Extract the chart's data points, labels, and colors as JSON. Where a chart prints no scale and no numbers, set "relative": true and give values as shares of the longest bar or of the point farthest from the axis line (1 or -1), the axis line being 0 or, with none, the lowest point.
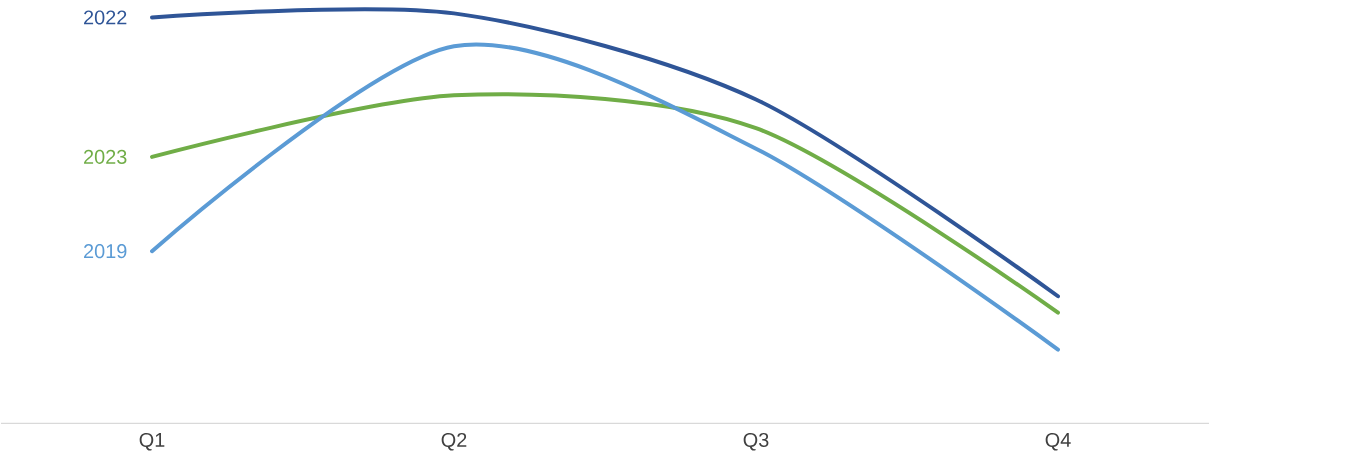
{
  "chart_data": {
    "type": "line",
    "relative": true,
    "categories": [
      "Q1",
      "Q2",
      "Q3",
      "Q4"
    ],
    "marker": "none",
    "line_style": "solid",
    "series": [
      {
        "name": "2022",
        "color": "#2f5597",
        "values": [
          0.99,
          1.0,
          0.79,
          0.31
        ]
      },
      {
        "name": "2023",
        "color": "#70ad47",
        "values": [
          0.65,
          0.8,
          0.72,
          0.27
        ]
      },
      {
        "name": "2019",
        "color": "#5b9bd5",
        "values": [
          0.42,
          0.92,
          0.67,
          0.18
        ]
      }
    ]
  }
}
